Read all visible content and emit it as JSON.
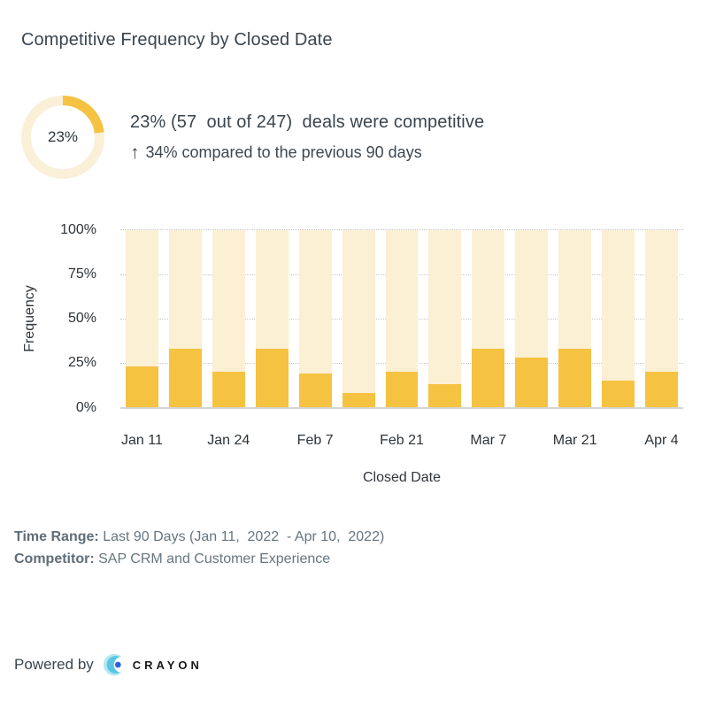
{
  "header": {
    "title": "Competitive Frequency by Closed Date"
  },
  "summary": {
    "donut_percent": 23,
    "donut_percent_label": "23%",
    "stat_line": "23% (57  out of 247)  deals were competitive",
    "trend_arrow": "↑",
    "trend_text": "34% compared to the previous 90 days"
  },
  "chart_data": {
    "type": "bar",
    "stacked": true,
    "title": "",
    "xlabel": "Closed Date",
    "ylabel": "Frequency",
    "ylim": [
      0,
      100
    ],
    "y_tick_labels": [
      "100%",
      "75%",
      "50%",
      "25%",
      "0%"
    ],
    "y_tick_values": [
      100,
      75,
      50,
      25,
      0
    ],
    "values": [
      23,
      33,
      20,
      33,
      19,
      8,
      20,
      13,
      33,
      28,
      33,
      15,
      20
    ],
    "background_fill_to": 100,
    "x_tick_labels": [
      "Jan 11",
      "Jan 24",
      "Feb 7",
      "Feb 21",
      "Mar 7",
      "Mar 21",
      "Apr 4"
    ],
    "x_tick_bar_indices": [
      0,
      2,
      4,
      6,
      8,
      10,
      12
    ],
    "gridlines_at": [
      100,
      75,
      50,
      25
    ],
    "legend": "none",
    "colors": {
      "bar_fill": "#f5c242",
      "bar_track": "#fcf0d4",
      "gridline": "#c6c6c6",
      "axis_line": "#d5d5d5"
    }
  },
  "footer": {
    "time_range_label": "Time Range:",
    "time_range_value": "Last 90 Days (Jan 11,  2022  - Apr 10,  2022)",
    "competitor_label": "Competitor:",
    "competitor_value": "SAP CRM and Customer Experience"
  },
  "branding": {
    "powered_by": "Powered by",
    "brand_name": "CRAYON",
    "logo_icon": "crayon-crescent-icon",
    "colors": {
      "icon_light": "#b3e6f2",
      "icon_mid": "#59c7e3",
      "icon_dot": "#2d63d8",
      "wordmark": "#17191c"
    }
  },
  "theme": {
    "accent": "#f5c242",
    "accent_light": "#faf0d8",
    "title_color": "#3a454e",
    "muted_text": "#66767f",
    "background": "#ffffff"
  }
}
